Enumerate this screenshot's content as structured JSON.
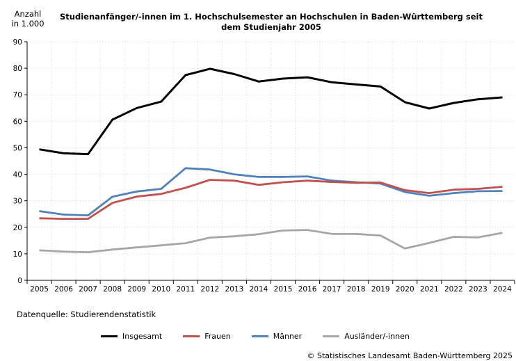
{
  "chart_data": {
    "type": "line",
    "title_line1": "Studienanfänger/-innen im 1. Hochschulsemester an Hochschulen in Baden-Württemberg seit",
    "title_line2": "dem Studienjahr 2005",
    "ylabel_line1": "Anzahl",
    "ylabel_line2": "in 1.000",
    "ylim": [
      0,
      90
    ],
    "yticks": [
      0,
      10,
      20,
      30,
      40,
      50,
      60,
      70,
      80,
      90
    ],
    "grid": true,
    "legend_position": "bottom",
    "x": [
      "2005",
      "2006",
      "2007",
      "2008",
      "2009",
      "2010",
      "2011",
      "2012",
      "2013",
      "2014",
      "2015",
      "2016",
      "2017",
      "2018",
      "2019",
      "2020",
      "2021",
      "2022",
      "2023",
      "2024"
    ],
    "series": [
      {
        "name": "Insgesamt",
        "color": "#000000",
        "values": [
          49.4,
          47.9,
          47.6,
          60.6,
          65.0,
          67.4,
          77.4,
          79.8,
          77.8,
          75.0,
          76.1,
          76.6,
          74.7,
          73.9,
          73.1,
          67.2,
          64.8,
          66.9,
          68.3,
          69.0
        ]
      },
      {
        "name": "Frauen",
        "color": "#c0504d",
        "values": [
          23.4,
          23.2,
          23.2,
          29.2,
          31.6,
          32.6,
          34.9,
          37.9,
          37.6,
          36.0,
          37.0,
          37.6,
          37.1,
          36.8,
          36.9,
          34.0,
          32.9,
          34.2,
          34.5,
          35.3
        ]
      },
      {
        "name": "Männer",
        "color": "#4f81bd",
        "values": [
          26.1,
          24.8,
          24.5,
          31.5,
          33.5,
          34.5,
          42.3,
          41.8,
          40.0,
          39.0,
          39.0,
          39.2,
          37.6,
          37.0,
          36.5,
          33.3,
          31.9,
          32.9,
          33.6,
          33.7
        ]
      },
      {
        "name": "Ausländer/-innen",
        "color": "#a6a6a6",
        "values": [
          11.3,
          10.8,
          10.6,
          11.6,
          12.4,
          13.2,
          14.0,
          16.1,
          16.6,
          17.4,
          18.8,
          19.0,
          17.5,
          17.5,
          16.9,
          12.0,
          14.1,
          16.4,
          16.2,
          17.9
        ]
      }
    ]
  },
  "source": "Datenquelle: Studierendenstatistik",
  "copyright": "© Statistisches Landesamt Baden-Württemberg 2025"
}
